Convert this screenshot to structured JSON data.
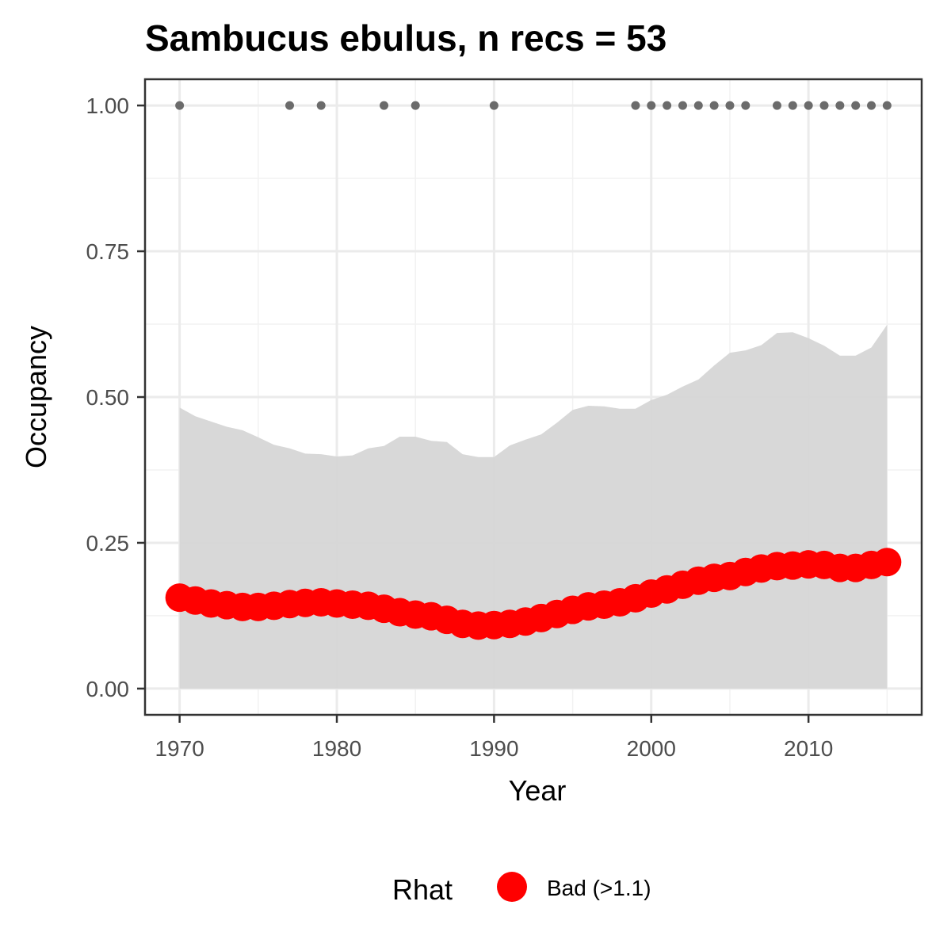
{
  "chart_data": {
    "type": "line",
    "title": "Sambucus ebulus, n recs = 53",
    "xlabel": "Year",
    "ylabel": "Occupancy",
    "xlim": [
      1967.8,
      2017.2
    ],
    "ylim": [
      -0.045,
      1.045
    ],
    "x_ticks": [
      1970,
      1980,
      1990,
      2000,
      2010
    ],
    "x_tick_labels": [
      "1970",
      "1980",
      "1990",
      "2000",
      "2010"
    ],
    "y_ticks": [
      0,
      0.25,
      0.5,
      0.75,
      1.0
    ],
    "y_tick_labels": [
      "0.00",
      "0.25",
      "0.50",
      "0.75",
      "1.00"
    ],
    "grid": true,
    "legend": {
      "title": "Rhat",
      "position": "bottom",
      "entries": [
        {
          "label": "Bad (>1.1)",
          "color": "#ff0000"
        }
      ]
    },
    "x": [
      1970,
      1971,
      1972,
      1973,
      1974,
      1975,
      1976,
      1977,
      1978,
      1979,
      1980,
      1981,
      1982,
      1983,
      1984,
      1985,
      1986,
      1987,
      1988,
      1989,
      1990,
      1991,
      1992,
      1993,
      1994,
      1995,
      1996,
      1997,
      1998,
      1999,
      2000,
      2001,
      2002,
      2003,
      2004,
      2005,
      2006,
      2007,
      2008,
      2009,
      2010,
      2011,
      2012,
      2013,
      2014,
      2015
    ],
    "series": [
      {
        "name": "Bad (>1.1)",
        "color": "#ff0000",
        "values": [
          0.156,
          0.151,
          0.146,
          0.143,
          0.14,
          0.14,
          0.142,
          0.145,
          0.147,
          0.148,
          0.146,
          0.144,
          0.142,
          0.137,
          0.131,
          0.127,
          0.124,
          0.118,
          0.111,
          0.108,
          0.109,
          0.111,
          0.115,
          0.121,
          0.128,
          0.135,
          0.141,
          0.144,
          0.148,
          0.155,
          0.163,
          0.17,
          0.178,
          0.185,
          0.19,
          0.193,
          0.2,
          0.206,
          0.21,
          0.211,
          0.213,
          0.212,
          0.207,
          0.207,
          0.212,
          0.217
        ]
      }
    ],
    "credible_interval": {
      "color": "#d6d6d6",
      "lower": [
        0,
        0,
        0,
        0,
        0,
        0,
        0,
        0,
        0,
        0,
        0,
        0,
        0,
        0,
        0,
        0,
        0,
        0,
        0,
        0,
        0,
        0,
        0,
        0,
        0,
        0,
        0,
        0,
        0,
        0,
        0,
        0,
        0,
        0,
        0,
        0,
        0,
        0,
        0,
        0,
        0,
        0,
        0,
        0,
        0,
        0
      ],
      "upper": [
        0.482,
        0.467,
        0.458,
        0.449,
        0.443,
        0.431,
        0.418,
        0.412,
        0.403,
        0.402,
        0.398,
        0.4,
        0.412,
        0.416,
        0.432,
        0.432,
        0.425,
        0.423,
        0.402,
        0.397,
        0.397,
        0.417,
        0.427,
        0.436,
        0.456,
        0.478,
        0.485,
        0.484,
        0.48,
        0.48,
        0.495,
        0.504,
        0.518,
        0.53,
        0.554,
        0.576,
        0.58,
        0.589,
        0.61,
        0.611,
        0.601,
        0.588,
        0.571,
        0.571,
        0.585,
        0.624
      ]
    },
    "records": {
      "color": "#6b6b6b",
      "value": 1.0,
      "years": [
        1970,
        1977,
        1979,
        1983,
        1985,
        1990,
        1999,
        2000,
        2001,
        2002,
        2003,
        2004,
        2005,
        2006,
        2008,
        2009,
        2010,
        2011,
        2012,
        2013,
        2014,
        2015
      ]
    }
  }
}
